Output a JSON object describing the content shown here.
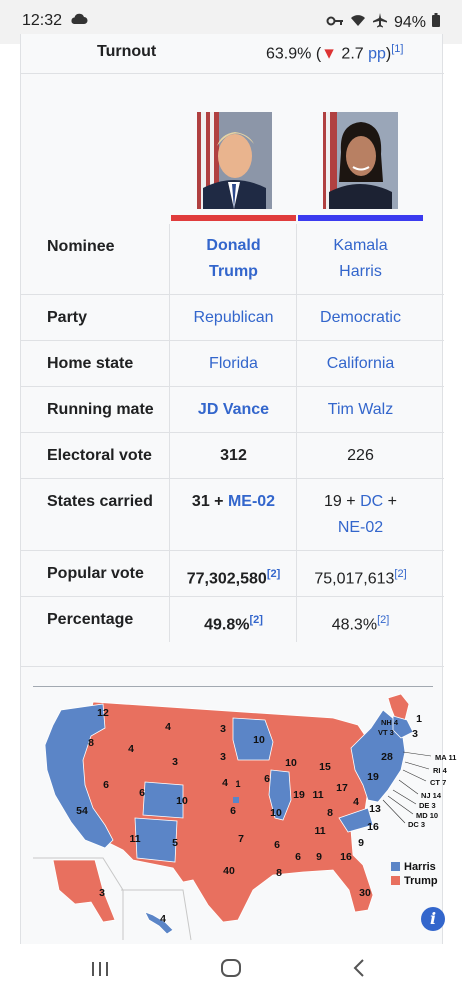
{
  "status_bar": {
    "time": "12:32",
    "battery": "94%"
  },
  "turnout": {
    "label": "Turnout",
    "value": "63.9% (",
    "arrow": "▼",
    "change": " 2.7 ",
    "unit": "pp",
    "close": ")",
    "ref": "[1]"
  },
  "candidates": {
    "left": {
      "color": "#e03c3c",
      "name_line1": "Donald",
      "name_line2": "Trump"
    },
    "right": {
      "color": "#3b3bef",
      "name_line1": "Kamala",
      "name_line2": "Harris"
    }
  },
  "rows": {
    "nominee": "Nominee",
    "party": {
      "label": "Party",
      "left": "Republican",
      "right": "Democratic"
    },
    "home_state": {
      "label": "Home state",
      "left": "Florida",
      "right": "California"
    },
    "running_mate": {
      "label": "Running mate",
      "left": "JD Vance",
      "right": "Tim Walz"
    },
    "electoral_vote": {
      "label": "Electoral vote",
      "left": "312",
      "right": "226"
    },
    "states_carried": {
      "label": "States carried",
      "left_a": "31 + ",
      "left_b": "ME-02",
      "right_a": "19 + ",
      "right_b": "DC",
      "right_c": " +",
      "right_d": "NE-02"
    },
    "popular_vote": {
      "label": "Popular vote",
      "left": "77,302,580",
      "left_ref": "[2]",
      "right": "75,017,613",
      "right_ref": "[2]"
    },
    "percentage": {
      "label": "Percentage",
      "left": "49.8%",
      "left_ref": "[2]",
      "right": "48.3%",
      "right_ref": "[2]"
    }
  },
  "map": {
    "colors": {
      "harris": "#5b85c7",
      "trump": "#e8705f"
    },
    "legend": {
      "harris": "Harris",
      "trump": "Trump"
    },
    "labels": {
      "wa": "12",
      "or": "8",
      "ca": "54",
      "nv": "6",
      "id": "4",
      "mt": "4",
      "wy": "3",
      "ut": "6",
      "az": "11",
      "co": "10",
      "nm": "5",
      "nd": "3",
      "sd": "3",
      "ne": "4",
      "ne1": "1",
      "ks": "6",
      "ok": "7",
      "tx": "40",
      "mn": "10",
      "ia": "6",
      "mo": "10",
      "ar": "6",
      "la": "8",
      "wi": "10",
      "il": "19",
      "mi": "15",
      "in": "11",
      "oh": "17",
      "ky": "8",
      "tn": "11",
      "ms": "6",
      "al": "9",
      "ga": "16",
      "fl": "30",
      "sc": "9",
      "nc": "16",
      "va": "13",
      "wv": "4",
      "pa": "19",
      "ny": "28",
      "me": "1",
      "me2": "3",
      "ak": "3",
      "hi": "4",
      "nh": "NH 4",
      "vt": "VT 3",
      "ma": "MA 11",
      "ri": "RI 4",
      "ct": "CT 7",
      "nj": "NJ 14",
      "de": "DE 3",
      "md": "MD 10",
      "dc": "DC 3"
    }
  },
  "info_button": "i"
}
